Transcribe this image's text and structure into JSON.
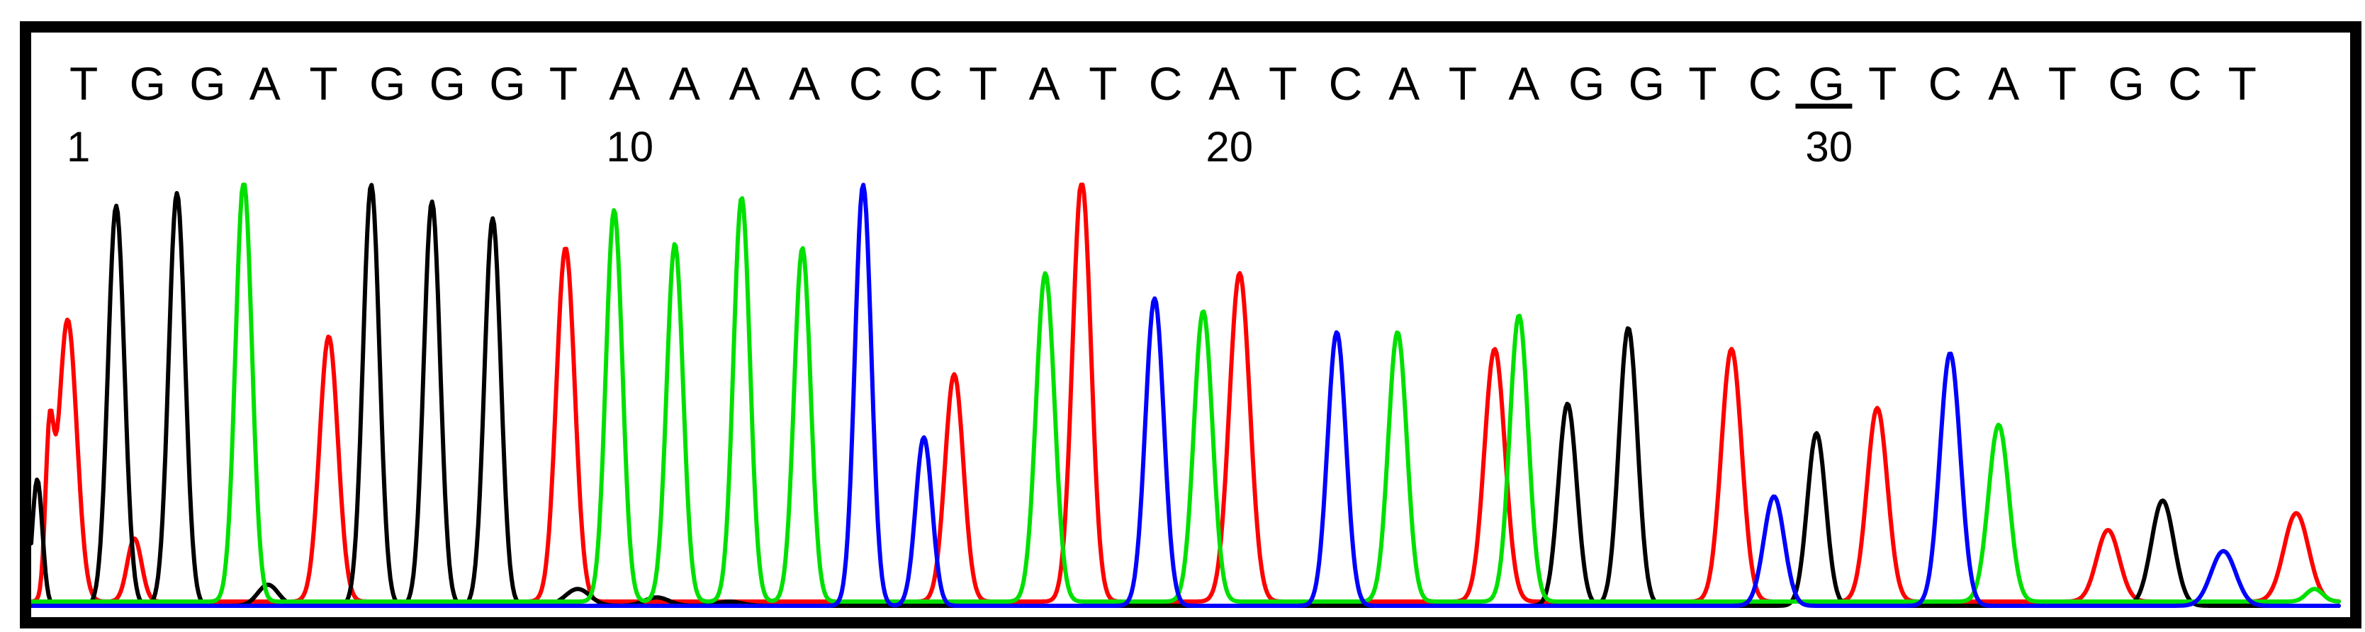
{
  "chart_data": {
    "type": "line",
    "title": "",
    "xlabel": "",
    "ylabel": "",
    "grid": false,
    "sequence": [
      "T",
      "G",
      "G",
      "A",
      "T",
      "G",
      "G",
      "G",
      "T",
      "A",
      "A",
      "A",
      "A",
      "C",
      "C",
      "T",
      "A",
      "T",
      "C",
      "A",
      "T",
      "C",
      "A",
      "T",
      "A",
      "G",
      "G",
      "T",
      "C",
      "G",
      "T",
      "C",
      "A",
      "T",
      "G",
      "C",
      "T"
    ],
    "position_labels": [
      {
        "base_index": 1,
        "text": "1"
      },
      {
        "base_index": 10,
        "text": "10"
      },
      {
        "base_index": 20,
        "text": "20"
      },
      {
        "base_index": 30,
        "text": "30"
      }
    ],
    "highlighted_base": 30,
    "base_colors": {
      "A": "#00e000",
      "C": "#0000ff",
      "G": "#000000",
      "T": "#ff0000"
    },
    "xlim": [
      0,
      38
    ],
    "ylim": [
      0,
      100
    ],
    "series": [
      {
        "base": "T",
        "color": "#ff0000",
        "baseline": 1,
        "peaks": [
          {
            "x": 0.3,
            "h": 35,
            "w": 0.2
          },
          {
            "x": 0.6,
            "h": 67,
            "w": 0.45
          },
          {
            "x": 1.7,
            "h": 15,
            "w": 0.35
          },
          {
            "x": 4.9,
            "h": 63,
            "w": 0.45
          },
          {
            "x": 8.8,
            "h": 84,
            "w": 0.45
          },
          {
            "x": 15.2,
            "h": 54,
            "w": 0.45
          },
          {
            "x": 17.3,
            "h": 100,
            "w": 0.45
          },
          {
            "x": 19.9,
            "h": 78,
            "w": 0.5
          },
          {
            "x": 24.1,
            "h": 60,
            "w": 0.5
          },
          {
            "x": 28.0,
            "h": 60,
            "w": 0.5
          },
          {
            "x": 30.4,
            "h": 46,
            "w": 0.5
          },
          {
            "x": 34.2,
            "h": 17,
            "w": 0.55
          },
          {
            "x": 37.3,
            "h": 21,
            "w": 0.6
          }
        ]
      },
      {
        "base": "G",
        "color": "#000000",
        "baseline": 0,
        "peaks": [
          {
            "x": 0.1,
            "h": 30,
            "w": 0.25
          },
          {
            "x": 1.4,
            "h": 95,
            "w": 0.4
          },
          {
            "x": 2.4,
            "h": 98,
            "w": 0.4
          },
          {
            "x": 3.9,
            "h": 5,
            "w": 0.5
          },
          {
            "x": 5.6,
            "h": 100,
            "w": 0.4
          },
          {
            "x": 6.6,
            "h": 96,
            "w": 0.4
          },
          {
            "x": 7.6,
            "h": 92,
            "w": 0.4
          },
          {
            "x": 9.0,
            "h": 4,
            "w": 0.6
          },
          {
            "x": 10.3,
            "h": 2,
            "w": 0.6
          },
          {
            "x": 11.5,
            "h": 1,
            "w": 0.6
          },
          {
            "x": 25.3,
            "h": 48,
            "w": 0.45
          },
          {
            "x": 26.3,
            "h": 66,
            "w": 0.45
          },
          {
            "x": 29.4,
            "h": 41,
            "w": 0.45
          },
          {
            "x": 35.1,
            "h": 25,
            "w": 0.55
          }
        ]
      },
      {
        "base": "A",
        "color": "#00e000",
        "baseline": 1,
        "peaks": [
          {
            "x": 3.5,
            "h": 100,
            "w": 0.4
          },
          {
            "x": 9.6,
            "h": 93,
            "w": 0.4
          },
          {
            "x": 10.6,
            "h": 85,
            "w": 0.4
          },
          {
            "x": 11.7,
            "h": 96,
            "w": 0.4
          },
          {
            "x": 12.7,
            "h": 84,
            "w": 0.4
          },
          {
            "x": 16.7,
            "h": 78,
            "w": 0.45
          },
          {
            "x": 19.3,
            "h": 69,
            "w": 0.45
          },
          {
            "x": 22.5,
            "h": 64,
            "w": 0.45
          },
          {
            "x": 24.5,
            "h": 68,
            "w": 0.45
          },
          {
            "x": 32.4,
            "h": 42,
            "w": 0.5
          },
          {
            "x": 37.6,
            "h": 3,
            "w": 0.4
          }
        ]
      },
      {
        "base": "C",
        "color": "#0000ff",
        "baseline": 0,
        "peaks": [
          {
            "x": 13.7,
            "h": 100,
            "w": 0.4
          },
          {
            "x": 14.7,
            "h": 40,
            "w": 0.4
          },
          {
            "x": 18.5,
            "h": 73,
            "w": 0.45
          },
          {
            "x": 21.5,
            "h": 65,
            "w": 0.45
          },
          {
            "x": 28.7,
            "h": 26,
            "w": 0.5
          },
          {
            "x": 31.6,
            "h": 60,
            "w": 0.5
          },
          {
            "x": 36.1,
            "h": 13,
            "w": 0.6
          }
        ]
      }
    ]
  }
}
